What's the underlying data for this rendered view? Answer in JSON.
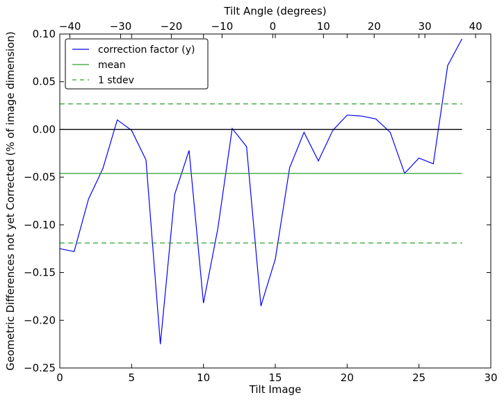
{
  "chart_data": {
    "type": "line",
    "xlabel": "Tilt Image",
    "ylabel": "Geometric Differences not yet Corrected (% of image dimension)",
    "top_xlabel": "Tilt Angle (degrees)",
    "xlim": [
      0,
      30
    ],
    "ylim": [
      -0.25,
      0.1
    ],
    "top_xlim": [
      -42,
      43
    ],
    "x_ticks": [
      "0",
      "5",
      "10",
      "15",
      "20",
      "25",
      "30"
    ],
    "y_ticks": [
      "0.10",
      "0.05",
      "0.00",
      "−0.05",
      "−0.10",
      "−0.15",
      "−0.20",
      "−0.25"
    ],
    "top_ticks": [
      "−40",
      "−30",
      "−20",
      "−10",
      "0",
      "10",
      "20",
      "30",
      "40"
    ],
    "grid": false,
    "legend_position": "top-left",
    "series": [
      {
        "name": "correction factor (y)",
        "color": "#0000ff",
        "style": "solid",
        "x": [
          0,
          1,
          2,
          3,
          4,
          5,
          6,
          7,
          8,
          9,
          10,
          11,
          12,
          13,
          14,
          15,
          16,
          17,
          18,
          19,
          20,
          21,
          22,
          23,
          24,
          25,
          26,
          27,
          28
        ],
        "values": [
          -0.125,
          -0.128,
          -0.073,
          -0.041,
          0.01,
          -0.001,
          -0.032,
          -0.225,
          -0.068,
          -0.022,
          -0.182,
          -0.104,
          0.001,
          -0.018,
          -0.185,
          -0.136,
          -0.04,
          -0.003,
          -0.033,
          -0.001,
          0.015,
          0.014,
          0.011,
          -0.003,
          -0.046,
          -0.03,
          -0.036,
          0.067,
          0.095
        ]
      },
      {
        "name": "mean",
        "color": "#2ca02c",
        "style": "solid",
        "x": [
          0,
          28
        ],
        "values": [
          -0.0461,
          -0.0461
        ]
      },
      {
        "name": "1 stdev",
        "color": "#2ca02c",
        "style": "dashed",
        "x": [
          0,
          28
        ],
        "values": [
          0.0268,
          0.0268
        ],
        "x2": [
          0,
          28
        ],
        "values2": [
          -0.119,
          -0.119
        ]
      }
    ],
    "zero_line": {
      "y": 0.0,
      "x": [
        0,
        28
      ],
      "color": "#000000"
    }
  }
}
